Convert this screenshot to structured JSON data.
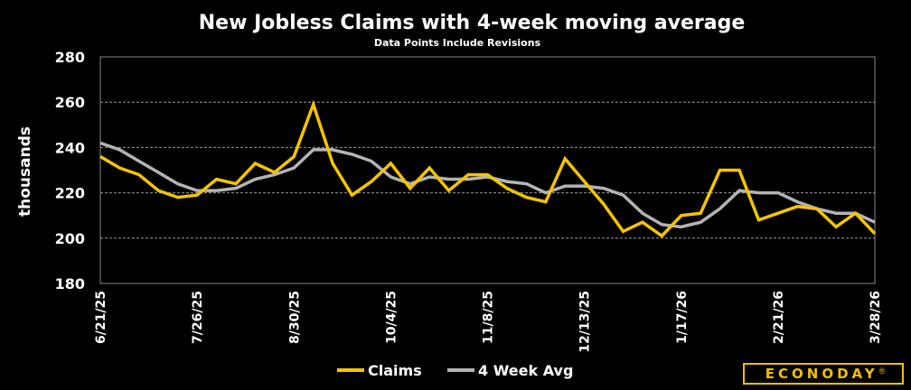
{
  "chart_data": {
    "type": "line",
    "title": "New Jobless Claims with 4-week moving average",
    "subtitle": "Data Points Include Revisions",
    "xlabel": "",
    "ylabel": "thousands",
    "ylim": [
      180,
      280
    ],
    "yticks": [
      180,
      200,
      220,
      240,
      260,
      280
    ],
    "grid": true,
    "legend_position": "bottom-center",
    "x": [
      "6/21/25",
      "6/28/25",
      "7/5/25",
      "7/12/25",
      "7/19/25",
      "7/26/25",
      "8/2/25",
      "8/9/25",
      "8/16/25",
      "8/23/25",
      "8/30/25",
      "9/6/25",
      "9/13/25",
      "9/20/25",
      "9/27/25",
      "10/4/25",
      "10/11/25",
      "10/18/25",
      "10/25/25",
      "11/1/25",
      "11/8/25",
      "11/15/25",
      "11/22/25",
      "11/29/25",
      "12/6/25",
      "12/13/25",
      "12/20/25",
      "12/27/25",
      "1/3/26",
      "1/10/26",
      "1/17/26",
      "1/24/26",
      "1/31/26",
      "2/7/26",
      "2/14/26",
      "2/21/26",
      "2/28/26",
      "3/7/26",
      "3/14/26",
      "3/21/26",
      "3/28/26"
    ],
    "xtick_labels": [
      "6/21/25",
      "7/26/25",
      "8/30/25",
      "10/4/25",
      "11/8/25",
      "12/13/25",
      "1/17/26",
      "2/21/26",
      "3/28/26"
    ],
    "series": [
      {
        "name": "Claims",
        "color": "#f5c400",
        "values": [
          236,
          231,
          228,
          221,
          218,
          219,
          226,
          224,
          233,
          229,
          236,
          259,
          233,
          219,
          225,
          233,
          222,
          231,
          221,
          228,
          228,
          222,
          218,
          216,
          235,
          225,
          215,
          203,
          207,
          201,
          210,
          211,
          230,
          230,
          208,
          211,
          214,
          213,
          205,
          211,
          202
        ]
      },
      {
        "name": "4 Week Avg",
        "color": "#b4b4b4",
        "values": [
          242,
          239,
          234,
          229,
          224,
          221,
          221,
          222,
          226,
          228,
          231,
          239,
          239,
          237,
          234,
          227,
          224,
          227,
          226,
          226,
          227,
          225,
          224,
          220,
          223,
          223,
          222,
          219,
          211,
          206,
          205,
          207,
          213,
          221,
          220,
          220,
          216,
          213,
          211,
          211,
          207
        ]
      }
    ],
    "brand": "ECONODAY",
    "brand_mark": "®"
  }
}
